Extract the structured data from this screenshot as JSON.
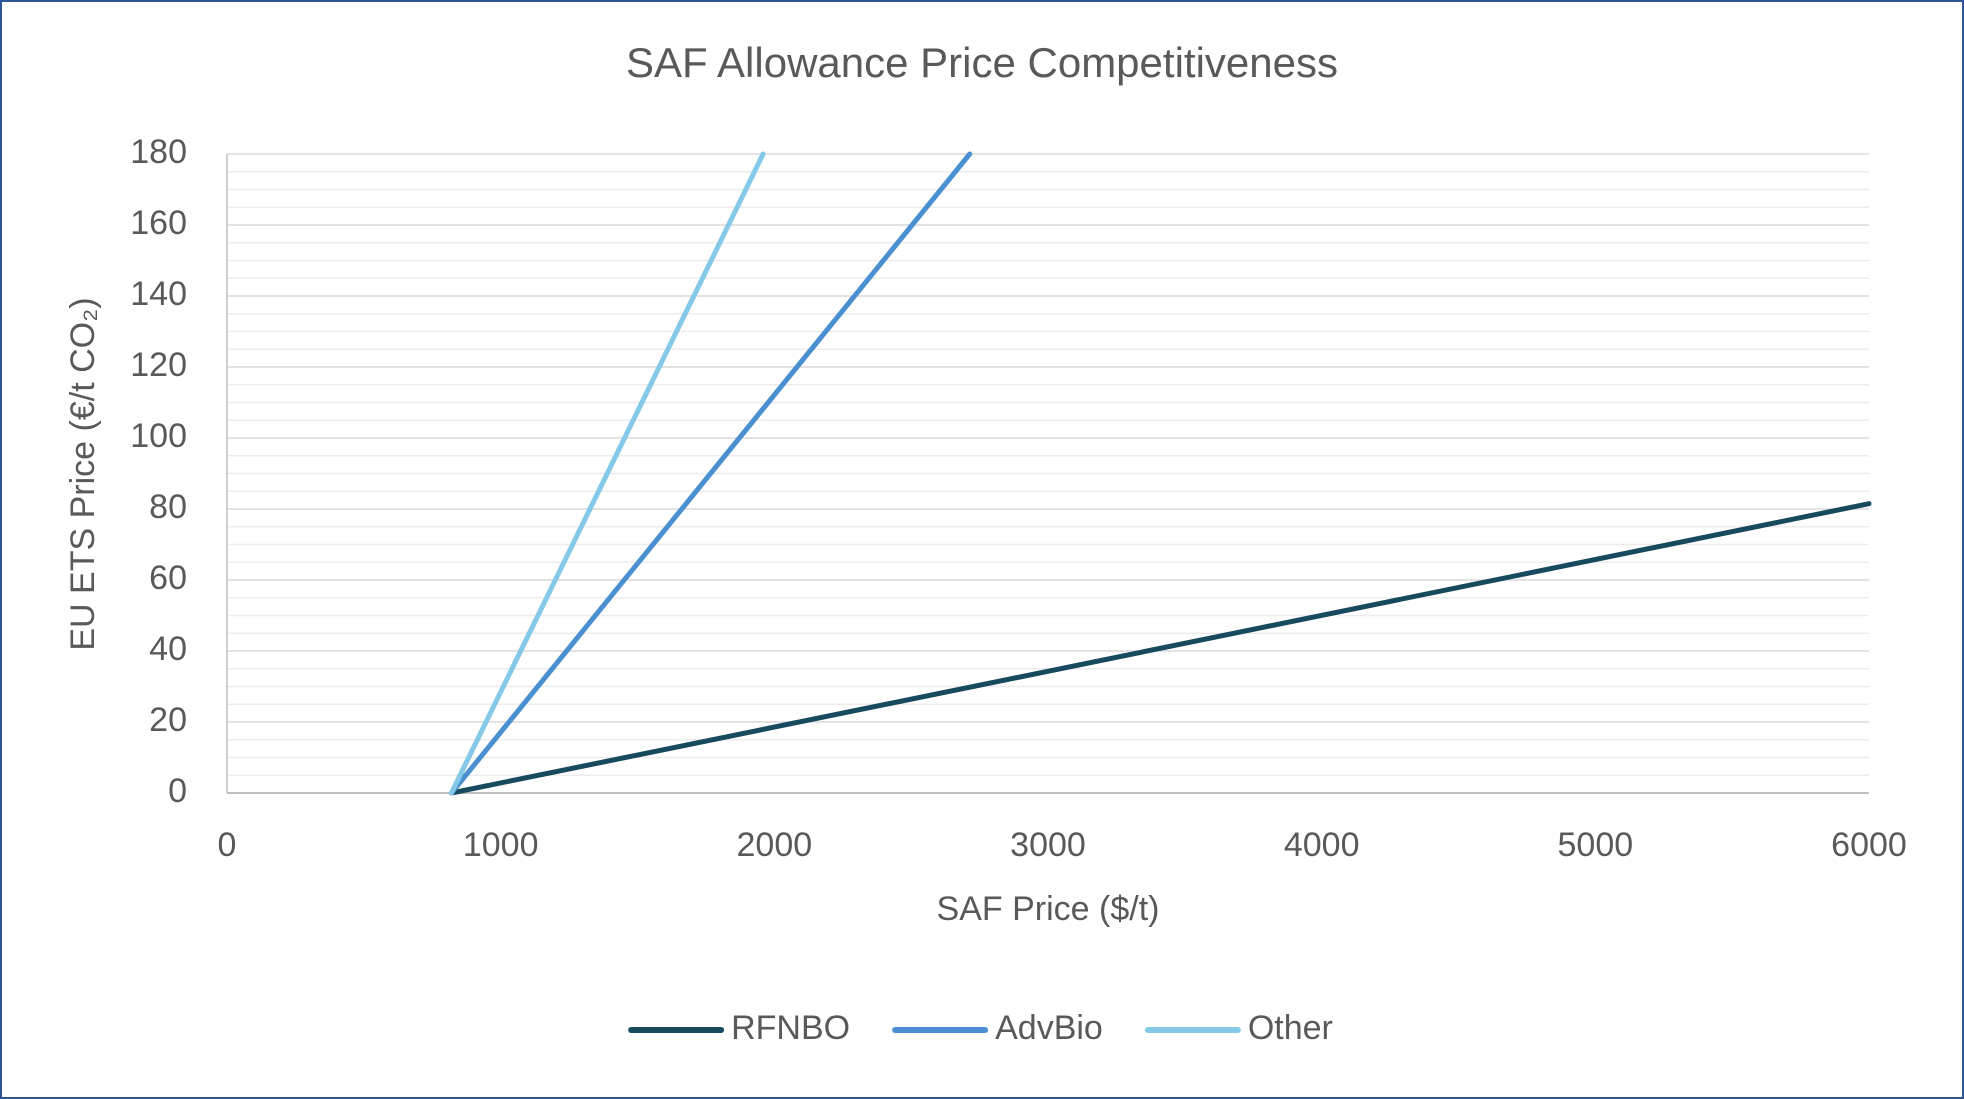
{
  "chart_data": {
    "type": "line",
    "title": "SAF Allowance Price Competitiveness",
    "x_label": "SAF Price ($/t)",
    "y_label": "EU ETS Price (€/t CO₂)",
    "xlim": [
      0,
      6000
    ],
    "xticks": [
      0,
      1000,
      2000,
      3000,
      4000,
      5000,
      6000
    ],
    "ylim": [
      0,
      180
    ],
    "yticks": [
      0,
      20,
      40,
      60,
      80,
      100,
      120,
      140,
      160,
      180
    ],
    "y_minor_step": 5,
    "grid": true,
    "legend": "bottom",
    "series": [
      {
        "name": "RFNBO",
        "color": "#174a5f",
        "x": [
          820,
          6000
        ],
        "values": [
          0,
          81.5
        ]
      },
      {
        "name": "AdvBio",
        "color": "#4a90d0",
        "x": [
          820,
          2714
        ],
        "values": [
          0,
          180
        ]
      },
      {
        "name": "Other",
        "color": "#84c9e8",
        "x": [
          820,
          1959
        ],
        "values": [
          0,
          180
        ]
      }
    ]
  }
}
